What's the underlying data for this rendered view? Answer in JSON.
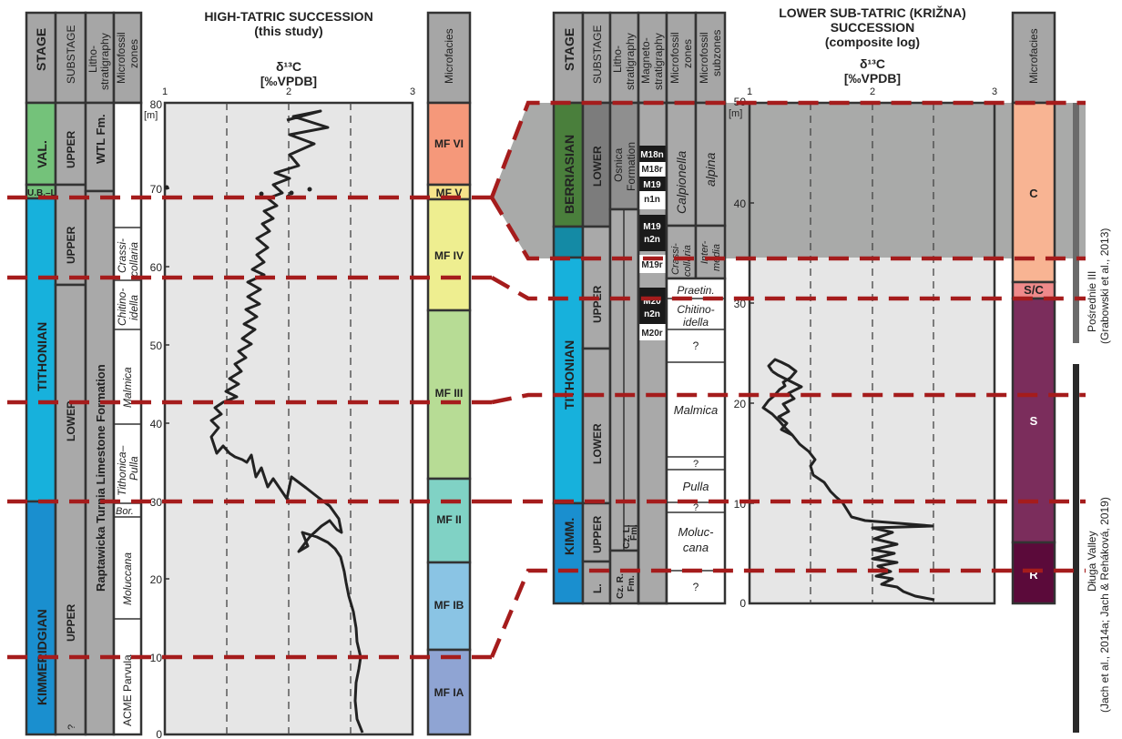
{
  "left": {
    "title_line1": "HIGH-TATRIC SUCCESSION",
    "title_line2": "(this study)",
    "axis_label": "δ¹³C",
    "axis_unit": "[‰VPDB]",
    "axis_ticks": [
      "1",
      "2",
      "3"
    ],
    "depth_ticks": [
      "0",
      "10",
      "20",
      "30",
      "40",
      "50",
      "60",
      "70",
      "80"
    ],
    "depth_unit": "[m]",
    "headers": {
      "stage": "STAGE",
      "substage": "SUBSTAGE",
      "litho": "Litho-",
      "litho2": "stratigraphy",
      "micro": "Microfossil",
      "micro2": "zones",
      "microfacies": "Microfacies"
    },
    "stages": {
      "val": "VAL.",
      "ubl": "U.B.–L.V.",
      "tithonian": "TITHONIAN",
      "kimmeridgian": "KIMMERIDGIAN"
    },
    "substages": {
      "upper_val": "UPPER",
      "upper_tith": "UPPER",
      "lower_tith": "LOWER",
      "upper_kimm": "UPPER",
      "q": "?"
    },
    "formations": {
      "wtl": "WTL Fm.",
      "raptawicka": "Raptawicka Turnia Limestone Formation"
    },
    "zones": {
      "crassi1": "Crassi-",
      "crassi2": "collaria",
      "chit1": "Chitino-",
      "chit2": "idella",
      "malmica": "Malmica",
      "tith1": "Tithonica–",
      "tith2": "Pulla",
      "bor": "Bor.",
      "moluccana": "Moluccana",
      "acme": "ACME Parvula"
    },
    "microfacies": [
      "MF VI",
      "MF V",
      "MF IV",
      "MF III",
      "MF II",
      "MF IB",
      "MF IA"
    ]
  },
  "right": {
    "title_line1": "LOWER SUB-TATRIC (KRIŽNA)",
    "title_line2": "SUCCESSION",
    "title_line3": "(composite log)",
    "axis_label": "δ¹³C",
    "axis_unit": "[‰VPDB]",
    "axis_ticks": [
      "1",
      "2",
      "3"
    ],
    "depth_ticks": [
      "0",
      "10",
      "20",
      "30",
      "40",
      "50"
    ],
    "depth_unit": "[m]",
    "headers": {
      "stage": "STAGE",
      "substage": "SUBSTAGE",
      "litho": "Litho-",
      "litho2": "stratigraphy",
      "magneto": "Magneto-",
      "magneto2": "stratigraphy",
      "micro": "Microfossil",
      "micro2": "zones",
      "sub": "Microfossil",
      "sub2": "subzones",
      "microfacies": "Microfacies"
    },
    "stages": {
      "berriasian": "BERRIASIAN",
      "tithonian": "TITHONIAN",
      "kimm": "KIMM."
    },
    "substages": {
      "lower_berr": "LOWER",
      "upper_tith": "UPPER",
      "lower_tith": "LOWER",
      "upper_kimm": "UPPER",
      "l": "L."
    },
    "formations": {
      "osnica1": "Osnica",
      "osnica2": "Formation",
      "czl1": "Cz. L.",
      "czl2": "Fm.",
      "czr1": "Cz. R.",
      "czr2": "Fm."
    },
    "magneto": [
      "M18n",
      "M18r",
      "M19",
      "n1n",
      "M19",
      "n2n",
      "M19r",
      "M20",
      "n2n",
      "M20r"
    ],
    "zones": {
      "calpionella": "Calpionella",
      "alpina": "alpina",
      "crassi1": "Crassi-",
      "crassi2": "collaria",
      "inter1": "Inter-",
      "inter2": "media",
      "praetin": "Praetin.",
      "chit1": "Chitino-",
      "chit2": "idella",
      "q1": "?",
      "malmica": "Malmica",
      "q2": "?",
      "pulla": "Pulla",
      "q3": "?",
      "moluc1": "Moluc-",
      "moluc2": "cana",
      "q4": "?"
    },
    "microfacies": [
      "C",
      "S/C",
      "S",
      "R"
    ],
    "side_top1": "Pośrednie III",
    "side_top2": "(Grabowski et al., 2013)",
    "side_bot1": "Długa Valley",
    "side_bot2": "(Jach et al., 2014a; Jach & Reháková, 2019)"
  },
  "colors": {
    "red_dash": "#a51c1c",
    "val": "#74c27a",
    "tithonian": "#17b1dc",
    "kimmeridgian": "#1a8fcf",
    "berriasian": "#4a7f3c",
    "grey_col": "#a9a9a9",
    "panel": "#e6e6e6",
    "shade": "#a9aaa9"
  }
}
